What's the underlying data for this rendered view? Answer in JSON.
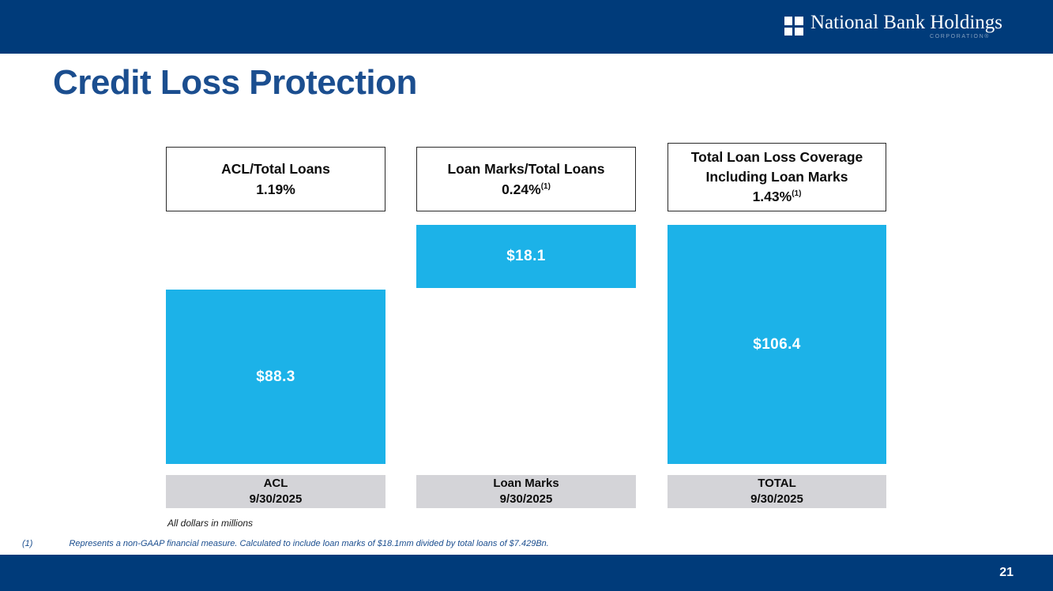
{
  "header": {
    "company_name": "National Bank Holdings",
    "company_sub": "CORPORATION®"
  },
  "title": "Credit Loss Protection",
  "columns": [
    {
      "header_title_1": "ACL/Total Loans",
      "header_title_2": "",
      "header_value": "1.19%",
      "header_value_sup": "",
      "bar_label": "$88.3",
      "footer_label": "ACL",
      "footer_date": "9/30/2025"
    },
    {
      "header_title_1": "Loan Marks/Total Loans",
      "header_title_2": "",
      "header_value": "0.24%",
      "header_value_sup": "(1)",
      "bar_label": "$18.1",
      "footer_label": "Loan Marks",
      "footer_date": "9/30/2025"
    },
    {
      "header_title_1": "Total Loan Loss Coverage",
      "header_title_2": "Including Loan Marks",
      "header_value": "1.43%",
      "header_value_sup": "(1)",
      "bar_label": "$106.4",
      "footer_label": "TOTAL",
      "footer_date": "9/30/2025"
    }
  ],
  "notes": {
    "units_note": "All dollars in millions",
    "footnote_marker": "(1)",
    "footnote_text": "Represents a non-GAAP financial measure.  Calculated to include loan marks of $18.1mm divided by total loans of $7.429Bn."
  },
  "footer": {
    "page_number": "21"
  },
  "colors": {
    "navy": "#003b7a",
    "title_blue": "#1b4e8f",
    "bar_cyan": "#1cb2e8",
    "label_gray": "#d4d4d8"
  },
  "chart_data": {
    "type": "bar",
    "title": "Credit Loss Protection",
    "categories": [
      "ACL 9/30/2025",
      "Loan Marks 9/30/2025",
      "TOTAL 9/30/2025"
    ],
    "values": [
      88.3,
      18.1,
      106.4
    ],
    "value_labels": [
      "$88.3",
      "$18.1",
      "$106.4"
    ],
    "units": "USD millions",
    "annotations": [
      "ACL/Total Loans 1.19%",
      "Loan Marks/Total Loans 0.24% (1)",
      "Total Loan Loss Coverage Including Loan Marks 1.43% (1)"
    ],
    "bar_color": "#1cb2e8",
    "layout_hint": "ACL and TOTAL bars share a common baseline; the Loan Marks bar floats, spanning from the shared top line of the TOTAL bar down to the top of the ACL bar (stacked-increment style). Axes and gridlines are not shown."
  }
}
